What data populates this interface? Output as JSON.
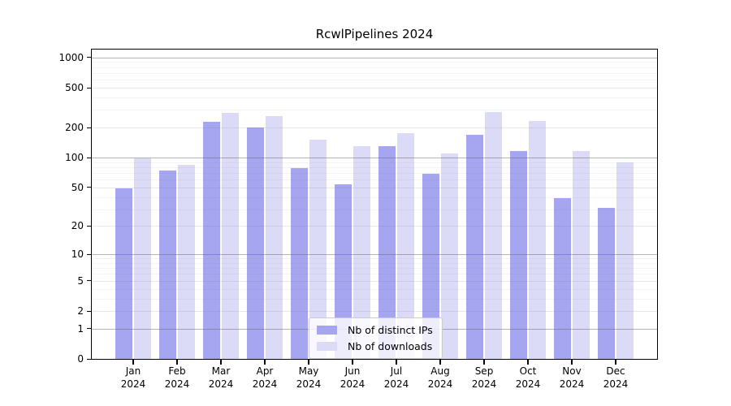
{
  "title": "RcwlPipelines 2024",
  "chart_data": {
    "type": "bar",
    "title": "RcwlPipelines 2024",
    "xlabel": "",
    "ylabel": "",
    "scale": "log10(value+1)",
    "ylim": [
      0,
      1200
    ],
    "grid": true,
    "legend_position": "inside-bottom-center",
    "y_ticks": [
      0,
      1,
      2,
      5,
      10,
      20,
      50,
      100,
      200,
      500,
      1000
    ],
    "categories": [
      "Jan 2024",
      "Feb 2024",
      "Mar 2024",
      "Apr 2024",
      "May 2024",
      "Jun 2024",
      "Jul 2024",
      "Aug 2024",
      "Sep 2024",
      "Oct 2024",
      "Nov 2024",
      "Dec 2024"
    ],
    "series": [
      {
        "name": "Nb of distinct IPs",
        "color": "#a5a5f0",
        "values": [
          49,
          74,
          230,
          201,
          78,
          54,
          131,
          69,
          168,
          116,
          39,
          31
        ]
      },
      {
        "name": "Nb of downloads",
        "color": "#dbdbf8",
        "values": [
          98,
          84,
          283,
          258,
          151,
          131,
          177,
          109,
          288,
          232,
          116,
          90
        ]
      }
    ]
  },
  "colors": {
    "axis": "#000000",
    "grid_major": "#b0b0b0",
    "grid_minor": "#ededed",
    "background": "#ffffff"
  }
}
